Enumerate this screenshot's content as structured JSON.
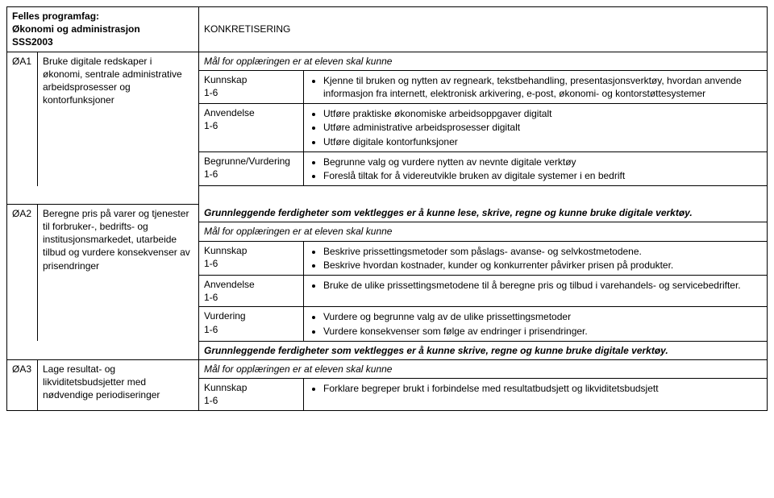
{
  "header": {
    "line1": "Felles programfag:",
    "line2": "Økonomi og administrasjon",
    "line3": "SSS2003",
    "konk": "KONKRETISERING"
  },
  "oa1": {
    "code": "ØA1",
    "desc": "Bruke digitale redskaper i økonomi, sentrale administrative arbeidsprosesser og kontorfunksjoner",
    "mal": "Mål for opplæringen er at eleven skal kunne",
    "kunnskap_label": "Kunnskap",
    "kunnskap_range": "1-6",
    "kunnskap_b1": "Kjenne til bruken og nytten av regneark, tekstbehandling, presentasjonsverktøy, hvordan anvende informasjon fra internett, elektronisk arkivering, e-post, økonomi- og kontorstøttesystemer",
    "anvendelse_label": "Anvendelse",
    "anvendelse_range": "1-6",
    "anvendelse_b1": "Utføre praktiske økonomiske arbeidsoppgaver digitalt",
    "anvendelse_b2": "Utføre administrative arbeidsprosesser digitalt",
    "anvendelse_b3": "Utføre digitale kontorfunksjoner",
    "begrunne_label": "Begrunne/Vurdering",
    "begrunne_range": "1-6",
    "begrunne_b1": "Begrunne valg og vurdere nytten av nevnte digitale verktøy",
    "begrunne_b2": "Foreslå tiltak for å videreutvikle bruken av digitale systemer i en bedrift"
  },
  "oa2": {
    "code": "ØA2",
    "desc": "Beregne pris på varer og tjenester til forbruker-, bedrifts- og institusjonsmarkedet, utarbeide tilbud og vurdere konsekvenser av prisendringer",
    "grunn": "Grunnleggende ferdigheter som vektlegges er å kunne lese, skrive, regne og kunne bruke digitale verktøy.",
    "mal": "Mål for opplæringen er at eleven skal kunne",
    "kunnskap_label": "Kunnskap",
    "kunnskap_range": "1-6",
    "kunnskap_b1": "Beskrive prissettingsmetoder som påslags- avanse- og selvkostmetodene.",
    "kunnskap_b2": "Beskrive hvordan kostnader, kunder og konkurrenter påvirker prisen på produkter.",
    "anvendelse_label": "Anvendelse",
    "anvendelse_range": "1-6",
    "anvendelse_b1": "Bruke de ulike prissettingsmetodene til å beregne pris og tilbud i varehandels- og servicebedrifter.",
    "vurdering_label": "Vurdering",
    "vurdering_range": "1-6",
    "vurdering_b1": "Vurdere og begrunne valg av de ulike prissettingsmetoder",
    "vurdering_b2": "Vurdere konsekvenser som følge av endringer i prisendringer."
  },
  "oa3": {
    "code": "ØA3",
    "desc": "Lage resultat- og likviditetsbudsjetter med nødvendige periodiseringer",
    "grunn": "Grunnleggende ferdigheter som vektlegges er å kunne skrive, regne og kunne bruke digitale verktøy.",
    "mal": "Mål for opplæringen er at eleven skal kunne",
    "kunnskap_label": "Kunnskap",
    "kunnskap_range": "1-6",
    "kunnskap_b1": "Forklare begreper brukt i forbindelse med resultatbudsjett og likviditetsbudsjett"
  }
}
